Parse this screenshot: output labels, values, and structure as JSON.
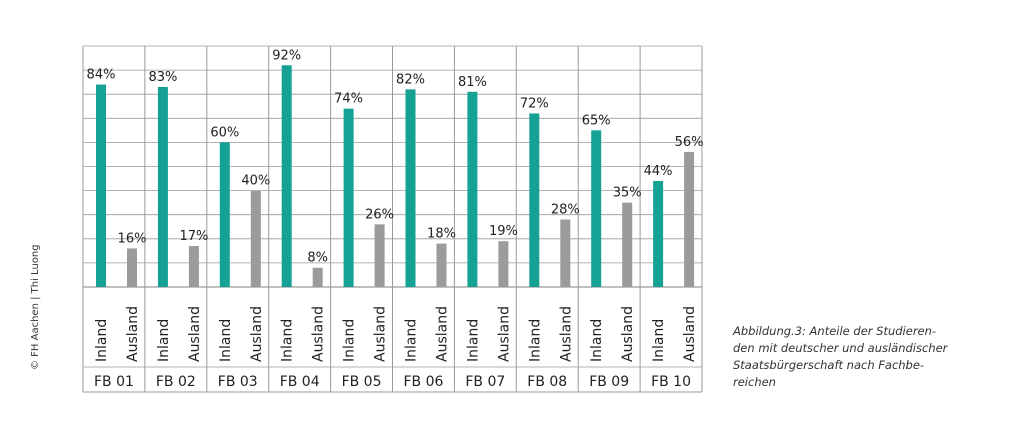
{
  "copyright": "© FH Aachen | Thi Luong",
  "caption_lines": [
    "Abbildung.3: Anteile der Studieren-",
    "den mit deutscher und ausländischer",
    "Staatsbürgerschaft nach Fachbe-",
    "reichen"
  ],
  "colors": {
    "inland": "#16a195",
    "ausland": "#9b9b9b",
    "grid": "#9a9a9a"
  },
  "chart_data": {
    "type": "bar",
    "categories": [
      "FB 01",
      "FB 02",
      "FB 03",
      "FB 04",
      "FB 05",
      "FB 06",
      "FB 07",
      "FB 08",
      "FB 09",
      "FB 10"
    ],
    "sub_categories": [
      "Inland",
      "Ausland"
    ],
    "series": [
      {
        "name": "Inland",
        "values": [
          84,
          83,
          60,
          92,
          74,
          82,
          81,
          72,
          65,
          44
        ]
      },
      {
        "name": "Ausland",
        "values": [
          16,
          17,
          40,
          8,
          26,
          18,
          19,
          28,
          35,
          56
        ]
      }
    ],
    "value_suffix": "%",
    "ylim": [
      0,
      100
    ],
    "grid": true,
    "title": "",
    "xlabel": "",
    "ylabel": ""
  }
}
